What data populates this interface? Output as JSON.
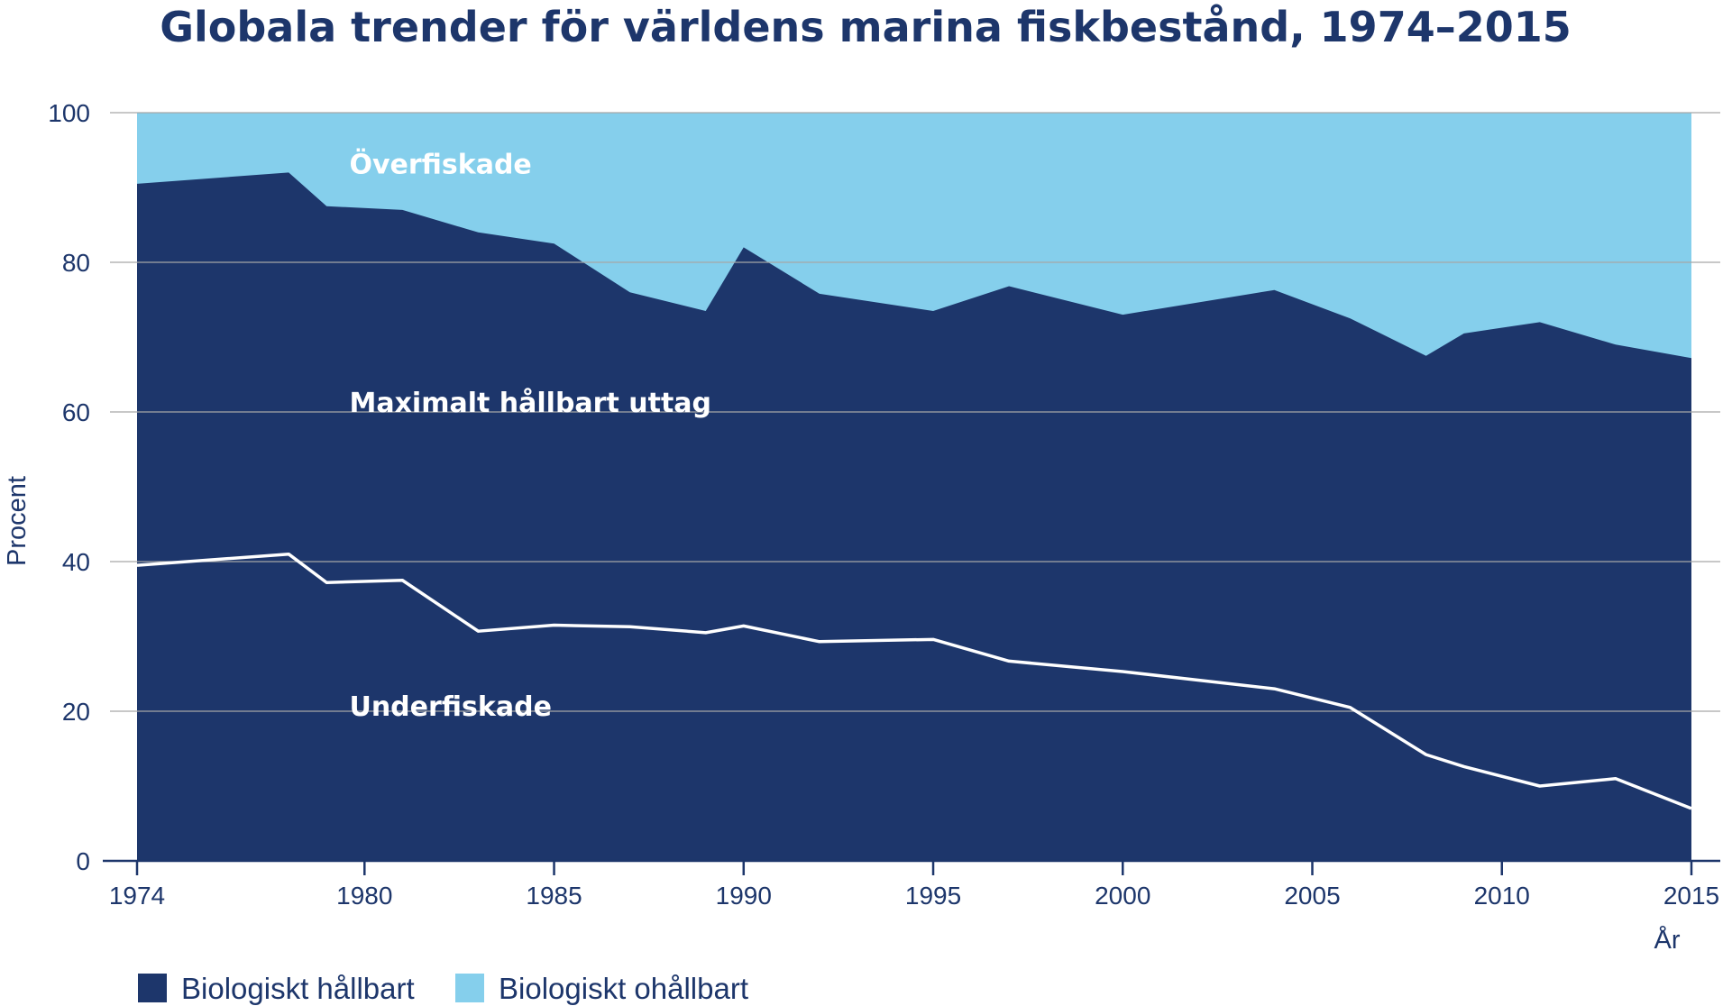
{
  "chart_data": {
    "type": "area",
    "title": "Globala trender för världens marina fiskbestånd, 1974–2015",
    "ylabel": "Procent",
    "xlabel": "År",
    "xlim": [
      1974,
      2015
    ],
    "ylim": [
      0,
      100
    ],
    "xticks": [
      1974,
      1980,
      1985,
      1990,
      1995,
      2000,
      2005,
      2010,
      2015
    ],
    "yticks": [
      0,
      20,
      40,
      60,
      80,
      100
    ],
    "grid": true,
    "legend_position": "bottom-left",
    "x": [
      1974,
      1978,
      1979,
      1981,
      1983,
      1985,
      1987,
      1989,
      1990,
      1992,
      1995,
      1997,
      2000,
      2004,
      2006,
      2008,
      2009,
      2011,
      2013,
      2015
    ],
    "series": [
      {
        "name": "Biologiskt hållbart",
        "color": "#1d366b",
        "values": [
          90.5,
          92.0,
          87.5,
          87.0,
          84.0,
          82.5,
          76.0,
          73.5,
          82.0,
          75.8,
          73.5,
          76.8,
          73.0,
          76.3,
          72.5,
          67.5,
          70.5,
          72.0,
          69.0,
          67.2
        ]
      },
      {
        "name": "Biologiskt ohållbart",
        "color": "#85cfec",
        "values": [
          9.5,
          8.0,
          12.5,
          13.0,
          16.0,
          17.5,
          24.0,
          26.5,
          18.0,
          24.2,
          26.5,
          23.2,
          27.0,
          23.7,
          27.5,
          32.5,
          29.5,
          28.0,
          31.0,
          32.8
        ]
      }
    ],
    "underfished_line": {
      "color": "#ffffff",
      "x": [
        1974,
        1978,
        1979,
        1981,
        1983,
        1985,
        1987,
        1989,
        1990,
        1992,
        1995,
        1997,
        2000,
        2004,
        2006,
        2008,
        2009,
        2011,
        2013,
        2015
      ],
      "values": [
        39.5,
        41.0,
        37.2,
        37.5,
        30.7,
        31.5,
        31.3,
        30.5,
        31.4,
        29.3,
        29.6,
        26.7,
        25.3,
        23.0,
        20.5,
        14.2,
        12.6,
        10.0,
        11.0,
        7.0
      ]
    },
    "region_labels": [
      {
        "text": "Överfiskade",
        "x": 1979.6,
        "y": 93.2
      },
      {
        "text": "Maximalt hållbart uttag",
        "x": 1979.6,
        "y": 61.3
      },
      {
        "text": "Underfiskade",
        "x": 1979.6,
        "y": 20.7
      }
    ]
  }
}
